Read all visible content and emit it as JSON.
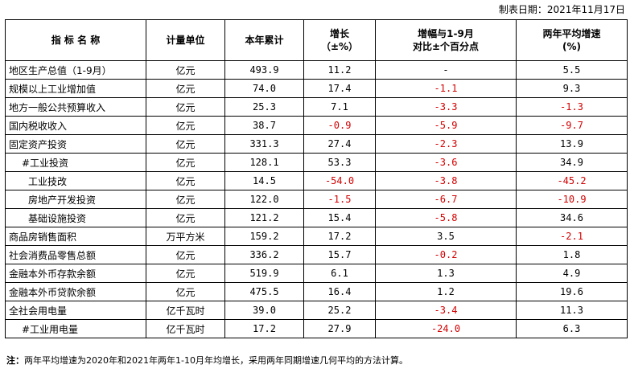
{
  "date_label": "制表日期：2021年11月17日",
  "headers": {
    "name": "指 标 名 称",
    "unit": "计量单位",
    "cumulative": "本年累计",
    "growth_1": "增长",
    "growth_2": "（±%）",
    "compare_1": "增幅与1-9月",
    "compare_2": "对比±个百分点",
    "avg_1": "两年平均增速",
    "avg_2": "(%)"
  },
  "rows": [
    {
      "name": "地区生产总值（1-9月）",
      "unit": "亿元",
      "total": "493.9",
      "growth": "11.2",
      "compare": "-",
      "avg": "5.5"
    },
    {
      "name": "规模以上工业增加值",
      "unit": "亿元",
      "total": "74.0",
      "growth": "17.4",
      "compare": "-1.1",
      "avg": "9.3"
    },
    {
      "name": "地方一般公共预算收入",
      "unit": "亿元",
      "total": "25.3",
      "growth": "7.1",
      "compare": "-3.3",
      "avg": "-1.3"
    },
    {
      "name": "国内税收收入",
      "unit": "亿元",
      "total": "38.7",
      "growth": "-0.9",
      "compare": "-5.9",
      "avg": "-9.7"
    },
    {
      "name": "固定资产投资",
      "unit": "亿元",
      "total": "331.3",
      "growth": "27.4",
      "compare": "-2.3",
      "avg": "13.9"
    },
    {
      "name": "#工业投资",
      "unit": "亿元",
      "total": "128.1",
      "growth": "53.3",
      "compare": "-3.6",
      "avg": "34.9"
    },
    {
      "name": "工业技改",
      "unit": "亿元",
      "total": "14.5",
      "growth": "-54.0",
      "compare": "-3.8",
      "avg": "-45.2"
    },
    {
      "name": "房地产开发投资",
      "unit": "亿元",
      "total": "122.0",
      "growth": "-1.5",
      "compare": "-6.7",
      "avg": "-10.9"
    },
    {
      "name": "基础设施投资",
      "unit": "亿元",
      "total": "121.2",
      "growth": "15.4",
      "compare": "-5.8",
      "avg": "34.6"
    },
    {
      "name": "商品房销售面积",
      "unit": "万平方米",
      "total": "159.2",
      "growth": "17.2",
      "compare": "3.5",
      "avg": "-2.1"
    },
    {
      "name": "社会消费品零售总额",
      "unit": "亿元",
      "total": "336.2",
      "growth": "15.7",
      "compare": "-0.2",
      "avg": "1.8"
    },
    {
      "name": "金融本外币存款余额",
      "unit": "亿元",
      "total": "519.9",
      "growth": "6.1",
      "compare": "1.3",
      "avg": "4.9"
    },
    {
      "name": "金融本外币贷款余额",
      "unit": "亿元",
      "total": "475.5",
      "growth": "16.4",
      "compare": "1.2",
      "avg": "19.6"
    },
    {
      "name": "全社会用电量",
      "unit": "亿千瓦时",
      "total": "39.0",
      "growth": "25.2",
      "compare": "-3.4",
      "avg": "11.3"
    },
    {
      "name": "#工业用电量",
      "unit": "亿千瓦时",
      "total": "17.2",
      "growth": "27.9",
      "compare": "-24.0",
      "avg": "6.3"
    }
  ],
  "note_label": "注：",
  "note_text": "两年平均增速为2020年和2021年两年1-10月年均增长，采用两年同期增速几何平均的方法计算。",
  "colors": {
    "negative": "#d40000"
  }
}
